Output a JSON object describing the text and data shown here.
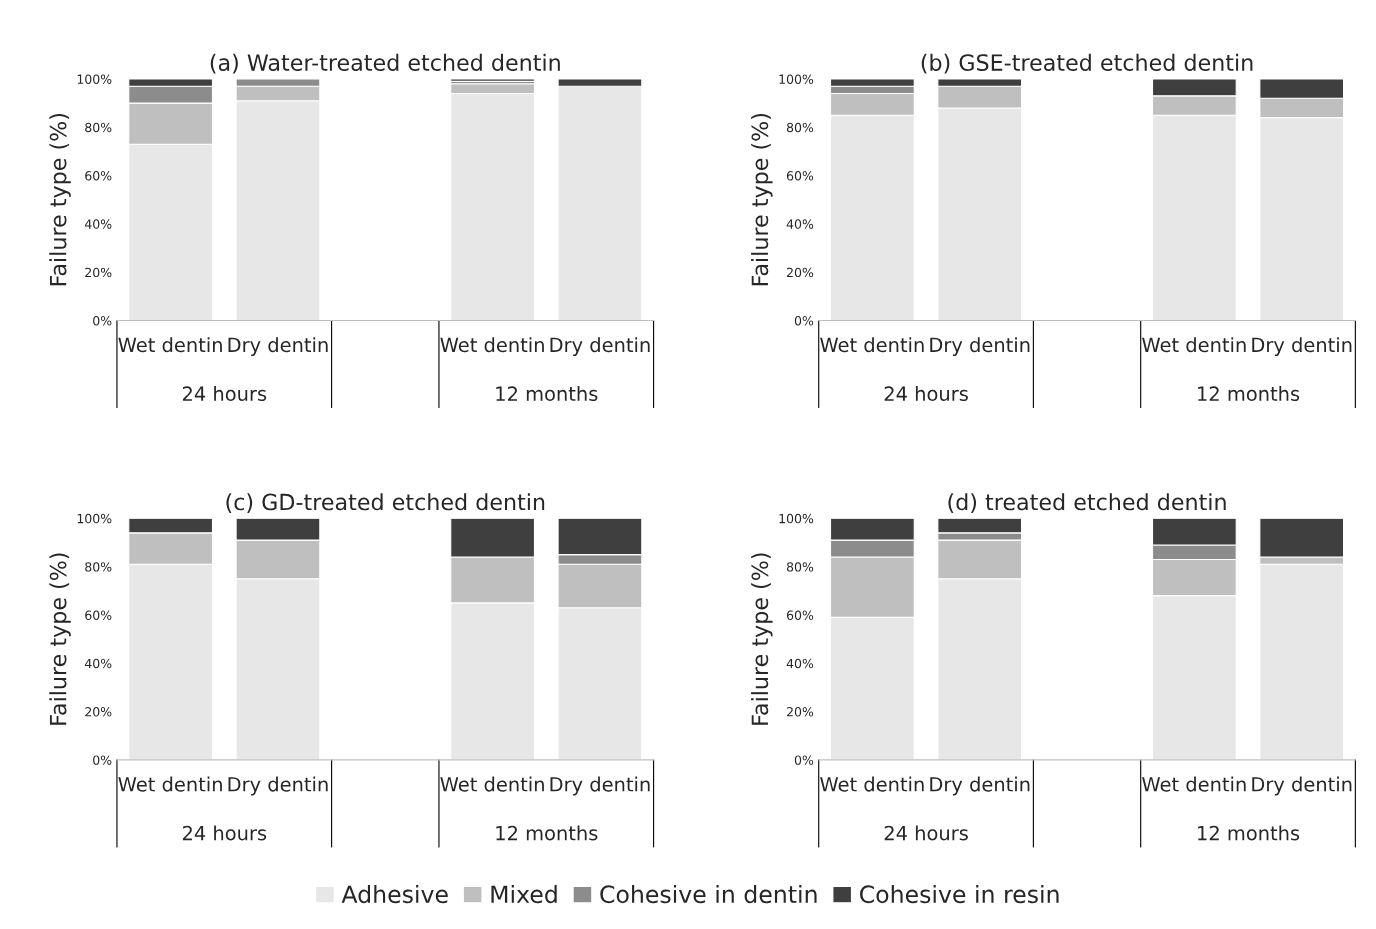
{
  "chart_data": [
    {
      "type": "bar",
      "stacked": true,
      "title": "(a) Water-treated etched dentin",
      "ylabel": "Failure type (%)",
      "categories": [
        "Wet dentin",
        "Dry dentin",
        null,
        "Wet dentin",
        "Dry dentin"
      ],
      "annotations": [
        "24 hours",
        "12 months"
      ],
      "legend": "bottom",
      "ylim": [
        0,
        100
      ],
      "yticks": [
        {
          "value": 0,
          "label": "0%"
        },
        {
          "value": 20,
          "label": "20%"
        },
        {
          "value": 40,
          "label": "40%"
        },
        {
          "value": 60,
          "label": "60%"
        },
        {
          "value": 80,
          "label": "80%"
        },
        {
          "value": 100,
          "label": "100%"
        }
      ],
      "series": [
        {
          "name": "Adhesive",
          "color": "#e7e7e7",
          "values": [
            73,
            91,
            null,
            94,
            97
          ]
        },
        {
          "name": "Mixed",
          "color": "#bfbfbf",
          "values": [
            17,
            6,
            null,
            4,
            0
          ]
        },
        {
          "name": "Cohesive in dentin",
          "color": "#8c8c8c",
          "values": [
            7,
            3,
            null,
            1,
            0
          ]
        },
        {
          "name": "Cohesive in resin",
          "color": "#3f3f3f",
          "values": [
            3,
            0,
            null,
            1,
            3
          ]
        }
      ]
    },
    {
      "type": "bar",
      "stacked": true,
      "title": "(b) GSE-treated etched dentin",
      "ylabel": "Failure type (%)",
      "categories": [
        "Wet dentin",
        "Dry dentin",
        null,
        "Wet dentin",
        "Dry dentin"
      ],
      "annotations": [
        "24 hours",
        "12 months"
      ],
      "ylim": [
        0,
        100
      ],
      "yticks": [
        {
          "value": 0,
          "label": "0%"
        },
        {
          "value": 20,
          "label": "20%"
        },
        {
          "value": 40,
          "label": "40%"
        },
        {
          "value": 60,
          "label": "60%"
        },
        {
          "value": 80,
          "label": "80%"
        },
        {
          "value": 100,
          "label": "100%"
        }
      ],
      "series": [
        {
          "color": "#e7e7e7",
          "values": [
            85,
            88,
            null,
            85,
            84
          ]
        },
        {
          "color": "#bfbfbf",
          "values": [
            9,
            9,
            null,
            8,
            8
          ]
        },
        {
          "color": "#8c8c8c",
          "values": [
            3,
            0,
            null,
            0,
            0
          ]
        },
        {
          "color": "#3f3f3f",
          "values": [
            3,
            3,
            null,
            7,
            8
          ]
        }
      ]
    },
    {
      "type": "bar",
      "stacked": true,
      "title": "(c) GD-treated etched dentin",
      "ylabel": "Failure type (%)",
      "categories": [
        "Wet dentin",
        "Dry dentin",
        null,
        "Wet dentin",
        "Dry dentin"
      ],
      "annotations": [
        "24 hours",
        "12 months"
      ],
      "ylim": [
        0,
        100
      ],
      "yticks": [
        {
          "value": 0,
          "label": "0%"
        },
        {
          "value": 20,
          "label": "20%"
        },
        {
          "value": 40,
          "label": "40%"
        },
        {
          "value": 60,
          "label": "60%"
        },
        {
          "value": 80,
          "label": "80%"
        },
        {
          "value": 100,
          "label": "100%"
        }
      ],
      "series": [
        {
          "color": "#e7e7e7",
          "values": [
            81,
            75,
            null,
            65,
            63
          ]
        },
        {
          "color": "#bfbfbf",
          "values": [
            13,
            16,
            null,
            19,
            18
          ]
        },
        {
          "color": "#8c8c8c",
          "values": [
            0,
            0,
            null,
            0,
            4
          ]
        },
        {
          "color": "#3f3f3f",
          "values": [
            6,
            9,
            null,
            16,
            15
          ]
        }
      ]
    },
    {
      "type": "bar",
      "stacked": true,
      "title": "(d) treated etched dentin",
      "ylabel": "Failure type (%)",
      "categories": [
        "Wet dentin",
        "Dry dentin",
        null,
        "Wet dentin",
        "Dry dentin"
      ],
      "annotations": [
        "24 hours",
        "12 months"
      ],
      "ylim": [
        0,
        100
      ],
      "yticks": [
        {
          "value": 0,
          "label": "0%"
        },
        {
          "value": 20,
          "label": "20%"
        },
        {
          "value": 40,
          "label": "40%"
        },
        {
          "value": 60,
          "label": "60%"
        },
        {
          "value": 80,
          "label": "80%"
        },
        {
          "value": 100,
          "label": "100%"
        }
      ],
      "series": [
        {
          "color": "#e7e7e7",
          "values": [
            59,
            75,
            null,
            68,
            81
          ]
        },
        {
          "color": "#bfbfbf",
          "values": [
            25,
            16,
            null,
            15,
            3
          ]
        },
        {
          "color": "#8c8c8c",
          "values": [
            7,
            3,
            null,
            6,
            0
          ]
        },
        {
          "color": "#3f3f3f",
          "values": [
            9,
            6,
            null,
            11,
            16
          ]
        }
      ]
    }
  ]
}
